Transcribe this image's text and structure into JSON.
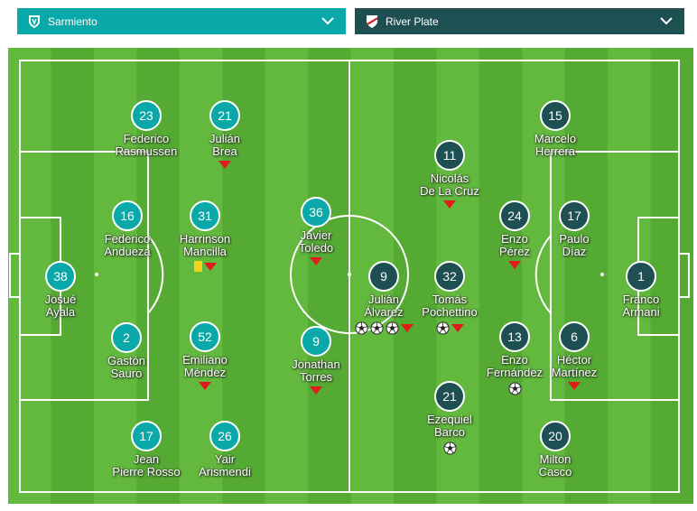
{
  "header": {
    "home_team": "Sarmiento",
    "away_team": "River Plate",
    "home_color": "#0aa8a8",
    "away_color": "#1e4f53",
    "home_crest_icon": "sarmiento-crest-icon",
    "away_crest_icon": "river-plate-crest-icon",
    "dropdown_icon": "chevron-down-icon"
  },
  "pitch_colors": {
    "stripe_light": "#63b83e",
    "stripe_dark": "#55aa33",
    "lines": "#ffffff"
  },
  "home_players": [
    {
      "number": "38",
      "name1": "Josué",
      "name2": "Ayala",
      "events": []
    },
    {
      "number": "16",
      "name1": "Federico",
      "name2": "Andueza",
      "events": []
    },
    {
      "number": "2",
      "name1": "Gastón",
      "name2": "Sauro",
      "events": []
    },
    {
      "number": "23",
      "name1": "Federico",
      "name2": "Rasmussen",
      "events": []
    },
    {
      "number": "17",
      "name1": "Jean",
      "name2": "Pierre Rosso",
      "events": []
    },
    {
      "number": "31",
      "name1": "Harrinson",
      "name2": "Mancilla",
      "events": [
        "yellow-card",
        "substitution"
      ]
    },
    {
      "number": "52",
      "name1": "Emiliano",
      "name2": "Méndez",
      "events": [
        "substitution"
      ]
    },
    {
      "number": "21",
      "name1": "Julián",
      "name2": "Brea",
      "events": [
        "substitution"
      ]
    },
    {
      "number": "26",
      "name1": "Yair",
      "name2": "Arismendi",
      "events": []
    },
    {
      "number": "36",
      "name1": "Javier",
      "name2": "Toledo",
      "events": [
        "substitution"
      ]
    },
    {
      "number": "9",
      "name1": "Jonathan",
      "name2": "Torres",
      "events": [
        "substitution"
      ]
    }
  ],
  "away_players": [
    {
      "number": "9",
      "name1": "Julián",
      "name2": "Álvarez",
      "events": [
        "goal",
        "goal",
        "goal",
        "substitution"
      ]
    },
    {
      "number": "32",
      "name1": "Tomás",
      "name2": "Pochettino",
      "events": [
        "goal",
        "substitution"
      ]
    },
    {
      "number": "11",
      "name1": "Nicolás",
      "name2": "De La Cruz",
      "events": [
        "substitution"
      ]
    },
    {
      "number": "21",
      "name1": "Ezequiel",
      "name2": "Barco",
      "events": [
        "goal"
      ]
    },
    {
      "number": "24",
      "name1": "Enzo",
      "name2": "Pérez",
      "events": [
        "substitution"
      ]
    },
    {
      "number": "13",
      "name1": "Enzo",
      "name2": "Fernández",
      "events": [
        "goal"
      ]
    },
    {
      "number": "15",
      "name1": "Marcelo",
      "name2": "Herrera",
      "events": []
    },
    {
      "number": "17",
      "name1": "Paulo",
      "name2": "Díaz",
      "events": []
    },
    {
      "number": "6",
      "name1": "Héctor",
      "name2": "Martínez",
      "events": [
        "substitution"
      ]
    },
    {
      "number": "20",
      "name1": "Milton",
      "name2": "Casco",
      "events": []
    },
    {
      "number": "1",
      "name1": "Franco",
      "name2": "Armani",
      "events": []
    }
  ]
}
